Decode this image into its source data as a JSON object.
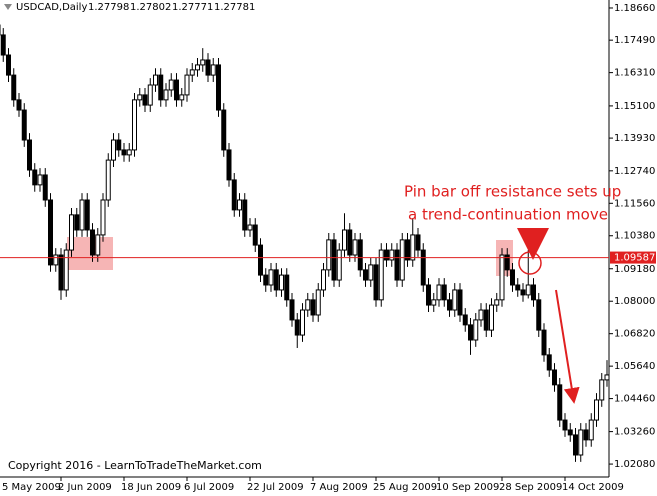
{
  "chart_data": {
    "type": "candlestick",
    "header": {
      "symbol": "USDCAD,Daily",
      "ohlc": [
        1.27798,
        1.27802,
        1.27771,
        1.27781
      ]
    },
    "categories": [
      "5 May 2009",
      null,
      null,
      null,
      null,
      null,
      null,
      null,
      null,
      null,
      null,
      null,
      "2 Jun 2009",
      null,
      null,
      null,
      null,
      null,
      null,
      null,
      null,
      null,
      null,
      null,
      "18 Jun 2009",
      null,
      null,
      null,
      null,
      null,
      null,
      null,
      null,
      null,
      null,
      null,
      "6 Jul 2009",
      null,
      null,
      null,
      null,
      null,
      null,
      null,
      null,
      null,
      null,
      null,
      "22 Jul 2009",
      null,
      null,
      null,
      null,
      null,
      null,
      null,
      null,
      null,
      null,
      null,
      "7 Aug 2009",
      null,
      null,
      null,
      null,
      null,
      null,
      null,
      null,
      null,
      null,
      null,
      "25 Aug 2009",
      null,
      null,
      null,
      null,
      null,
      null,
      null,
      null,
      null,
      null,
      null,
      "10 Sep 2009",
      null,
      null,
      null,
      null,
      null,
      null,
      null,
      null,
      null,
      null,
      null,
      "28 Sep 2009",
      null,
      null,
      null,
      null,
      null,
      null,
      null,
      null,
      null,
      null,
      null,
      "14 Oct 2009",
      null,
      null,
      null,
      null,
      null,
      null,
      null,
      null
    ],
    "open": [
      1.1804,
      1.1768,
      1.1695,
      1.1622,
      1.1532,
      1.1495,
      1.1386,
      1.1277,
      1.1223,
      1.1259,
      1.1168,
      1.0932,
      1.0968,
      1.0841,
      1.0986,
      1.1114,
      1.1059,
      1.1168,
      1.1059,
      1.0968,
      1.1041,
      1.1168,
      1.1313,
      1.1386,
      1.135,
      1.1332,
      1.135,
      1.1532,
      1.155,
      1.1513,
      1.1586,
      1.1622,
      1.1532,
      1.1568,
      1.1604,
      1.1532,
      1.155,
      1.1622,
      1.1641,
      1.1659,
      1.1677,
      1.1622,
      1.1659,
      1.1495,
      1.135,
      1.1241,
      1.1132,
      1.1168,
      1.1059,
      1.1077,
      1.1004,
      1.0895,
      1.0859,
      1.0914,
      1.0841,
      1.0895,
      1.0805,
      1.0732,
      1.0677,
      1.0768,
      1.0805,
      1.075,
      1.0841,
      1.0914,
      1.1023,
      1.0877,
      1.0986,
      1.1059,
      1.0968,
      1.1023,
      1.0914,
      1.0877,
      1.0932,
      1.0805,
      1.0986,
      1.095,
      1.0986,
      1.0877,
      1.1023,
      1.095,
      1.1041,
      1.0986,
      1.0859,
      1.0786,
      1.0805,
      1.0859,
      1.0805,
      1.0768,
      1.0841,
      1.075,
      1.0714,
      1.0659,
      1.0732,
      1.0768,
      1.0695,
      1.0786,
      1.0805,
      1.0968,
      1.0914,
      1.0859,
      1.0841,
      1.0823,
      1.0859,
      1.0805,
      1.0695,
      1.0605,
      1.055,
      1.0496,
      1.0368,
      1.0332,
      1.0314,
      1.0241,
      1.0332,
      1.0296,
      1.0368,
      1.0441,
      1.0514
    ],
    "high": [
      1.1829,
      1.1793,
      1.172,
      1.1647,
      1.1557,
      1.152,
      1.1411,
      1.1302,
      1.1284,
      1.1284,
      1.1193,
      1.0993,
      1.0993,
      1.1011,
      1.1139,
      1.1139,
      1.1193,
      1.1193,
      1.1084,
      1.1066,
      1.1193,
      1.1338,
      1.1411,
      1.1411,
      1.1375,
      1.1375,
      1.1557,
      1.1575,
      1.1575,
      1.1611,
      1.1647,
      1.1647,
      1.1593,
      1.1629,
      1.1629,
      1.1575,
      1.1647,
      1.1666,
      1.1684,
      1.172,
      1.1702,
      1.1684,
      1.1684,
      1.152,
      1.1375,
      1.1266,
      1.1193,
      1.1193,
      1.1102,
      1.1102,
      1.1029,
      1.092,
      1.0939,
      1.0939,
      1.092,
      1.092,
      1.083,
      1.0757,
      1.0793,
      1.083,
      1.083,
      1.0866,
      1.0939,
      1.1048,
      1.1048,
      1.1011,
      1.112,
      1.1084,
      1.1048,
      1.1048,
      1.0939,
      1.0957,
      1.0957,
      1.1011,
      1.1011,
      1.1011,
      1.1011,
      1.1048,
      1.1048,
      1.1102,
      1.1066,
      1.1011,
      1.0884,
      1.083,
      1.0884,
      1.0884,
      1.083,
      1.0866,
      1.0866,
      1.0775,
      1.0739,
      1.0757,
      1.0793,
      1.0793,
      1.0811,
      1.083,
      1.0993,
      1.0993,
      1.0939,
      1.0884,
      1.0866,
      1.0986,
      1.0884,
      1.083,
      1.072,
      1.063,
      1.0575,
      1.0521,
      1.0393,
      1.0357,
      1.0339,
      1.0357,
      1.0357,
      1.0393,
      1.0466,
      1.0539,
      1.0586
    ],
    "low": [
      1.1743,
      1.167,
      1.1597,
      1.1507,
      1.147,
      1.1361,
      1.1252,
      1.1198,
      1.1198,
      1.1143,
      1.0907,
      1.0907,
      1.0805,
      1.0816,
      1.0961,
      1.1034,
      1.1034,
      1.1034,
      1.0943,
      1.0943,
      1.1016,
      1.1143,
      1.1288,
      1.1325,
      1.1307,
      1.1307,
      1.1325,
      1.1507,
      1.1488,
      1.1488,
      1.1561,
      1.1507,
      1.1507,
      1.1543,
      1.1507,
      1.1507,
      1.1525,
      1.1597,
      1.1616,
      1.1634,
      1.1597,
      1.1597,
      1.147,
      1.1325,
      1.1216,
      1.1107,
      1.1107,
      1.1034,
      1.1034,
      1.0979,
      1.087,
      1.0834,
      1.0834,
      1.0816,
      1.0816,
      1.078,
      1.0707,
      1.063,
      1.0652,
      1.0743,
      1.0725,
      1.0725,
      1.0816,
      1.0889,
      1.0852,
      1.0852,
      1.0961,
      1.0943,
      1.0943,
      1.0889,
      1.0852,
      1.0852,
      1.078,
      1.078,
      1.0925,
      1.0925,
      1.0852,
      1.0852,
      1.0925,
      1.0925,
      1.0961,
      1.0834,
      1.0761,
      1.0761,
      1.078,
      1.078,
      1.0743,
      1.0743,
      1.0725,
      1.0689,
      1.0605,
      1.0634,
      1.0707,
      1.067,
      1.067,
      1.0761,
      1.078,
      1.0889,
      1.0834,
      1.0816,
      1.0798,
      1.081,
      1.078,
      1.067,
      1.058,
      1.0525,
      1.0471,
      1.0343,
      1.0307,
      1.0289,
      1.0216,
      1.0216,
      1.0271,
      1.0271,
      1.0343,
      1.0416,
      1.0489
    ],
    "close": [
      1.1768,
      1.1695,
      1.1622,
      1.1532,
      1.1495,
      1.1386,
      1.1277,
      1.1223,
      1.1259,
      1.1168,
      1.0932,
      1.0968,
      1.0841,
      1.0986,
      1.1114,
      1.1059,
      1.1168,
      1.1059,
      1.0968,
      1.1041,
      1.1168,
      1.1313,
      1.1386,
      1.135,
      1.1332,
      1.135,
      1.1532,
      1.155,
      1.1513,
      1.1586,
      1.1622,
      1.1532,
      1.1568,
      1.1604,
      1.1532,
      1.155,
      1.1622,
      1.1641,
      1.1659,
      1.1677,
      1.1622,
      1.1659,
      1.1495,
      1.135,
      1.1241,
      1.1132,
      1.1168,
      1.1059,
      1.1077,
      1.1004,
      1.0895,
      1.0859,
      1.0914,
      1.0841,
      1.0895,
      1.0805,
      1.0732,
      1.0677,
      1.0768,
      1.0805,
      1.075,
      1.0841,
      1.0914,
      1.1023,
      1.0877,
      1.0986,
      1.1059,
      1.0968,
      1.1023,
      1.0914,
      1.0877,
      1.0932,
      1.0805,
      1.0986,
      1.095,
      1.0986,
      1.0877,
      1.1023,
      1.095,
      1.1041,
      1.0986,
      1.0859,
      1.0786,
      1.0805,
      1.0859,
      1.0805,
      1.0768,
      1.0841,
      1.075,
      1.0714,
      1.0659,
      1.0732,
      1.0768,
      1.0695,
      1.0786,
      1.0805,
      1.0968,
      1.0914,
      1.0859,
      1.0841,
      1.0823,
      1.0859,
      1.0805,
      1.0695,
      1.0605,
      1.055,
      1.0496,
      1.0368,
      1.0332,
      1.0314,
      1.0241,
      1.0332,
      1.0296,
      1.0368,
      1.0441,
      1.0514,
      1.0532
    ],
    "ylim": [
      1.0161,
      1.1895
    ],
    "yticks": [
      {
        "value": 1.1866,
        "label": "1.18660"
      },
      {
        "value": 1.1749,
        "label": "1.17490"
      },
      {
        "value": 1.1631,
        "label": "1.16310"
      },
      {
        "value": 1.151,
        "label": "1.15100"
      },
      {
        "value": 1.1393,
        "label": "1.13930"
      },
      {
        "value": 1.1274,
        "label": "1.12740"
      },
      {
        "value": 1.1156,
        "label": "1.11560"
      },
      {
        "value": 1.1038,
        "label": "1.10380"
      },
      {
        "value": 1.0918,
        "label": "1.09180"
      },
      {
        "value": 1.08,
        "label": "1.08000"
      },
      {
        "value": 1.0682,
        "label": "1.06820"
      },
      {
        "value": 1.0564,
        "label": "1.05640"
      },
      {
        "value": 1.0446,
        "label": "1.04460"
      },
      {
        "value": 1.0326,
        "label": "1.03260"
      },
      {
        "value": 1.0208,
        "label": "1.02080"
      }
    ],
    "price_line": 1.09587,
    "up_color": "#ffffff",
    "down_color": "#000000",
    "annotations": [
      "Pin bar off resistance sets up",
      "a trend-continuation move"
    ],
    "copyright": "Copyright 2016 - LearnToTradeTheMarket.com"
  }
}
